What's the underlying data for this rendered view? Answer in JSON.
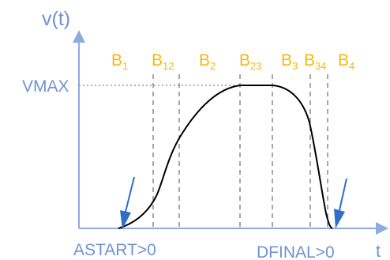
{
  "axes": {
    "y_label": "v(t)",
    "x_label": "t",
    "vmax_label": "VMAX",
    "color": "#6f93d3"
  },
  "segments": [
    {
      "base": "B",
      "sub": "1"
    },
    {
      "base": "B",
      "sub": "12"
    },
    {
      "base": "B",
      "sub": "2"
    },
    {
      "base": "B",
      "sub": "23"
    },
    {
      "base": "B",
      "sub": "3"
    },
    {
      "base": "B",
      "sub": "34"
    },
    {
      "base": "B",
      "sub": "4"
    }
  ],
  "segment_color": "#f5b80f",
  "annotations": {
    "start": "ASTART>0",
    "end": "DFINAL>0"
  },
  "colors": {
    "curve": "#000000",
    "guides": "#888888",
    "arrows": "#2f6fc6"
  }
}
